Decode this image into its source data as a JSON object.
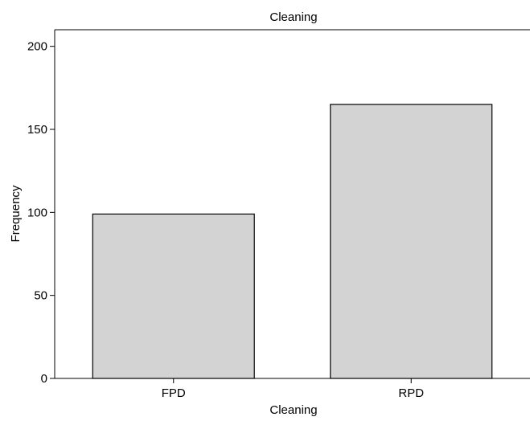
{
  "chart_data": {
    "type": "bar",
    "title": "Cleaning",
    "xlabel": "Cleaning",
    "ylabel": "Frequency",
    "categories": [
      "FPD",
      "RPD"
    ],
    "values": [
      99,
      165
    ],
    "ylim": [
      0,
      210
    ],
    "yticks": [
      0,
      50,
      100,
      150,
      200
    ],
    "grid": false,
    "colors": {
      "bar_fill": "#d3d3d3",
      "bar_stroke": "#000000",
      "axis": "#000000"
    }
  }
}
